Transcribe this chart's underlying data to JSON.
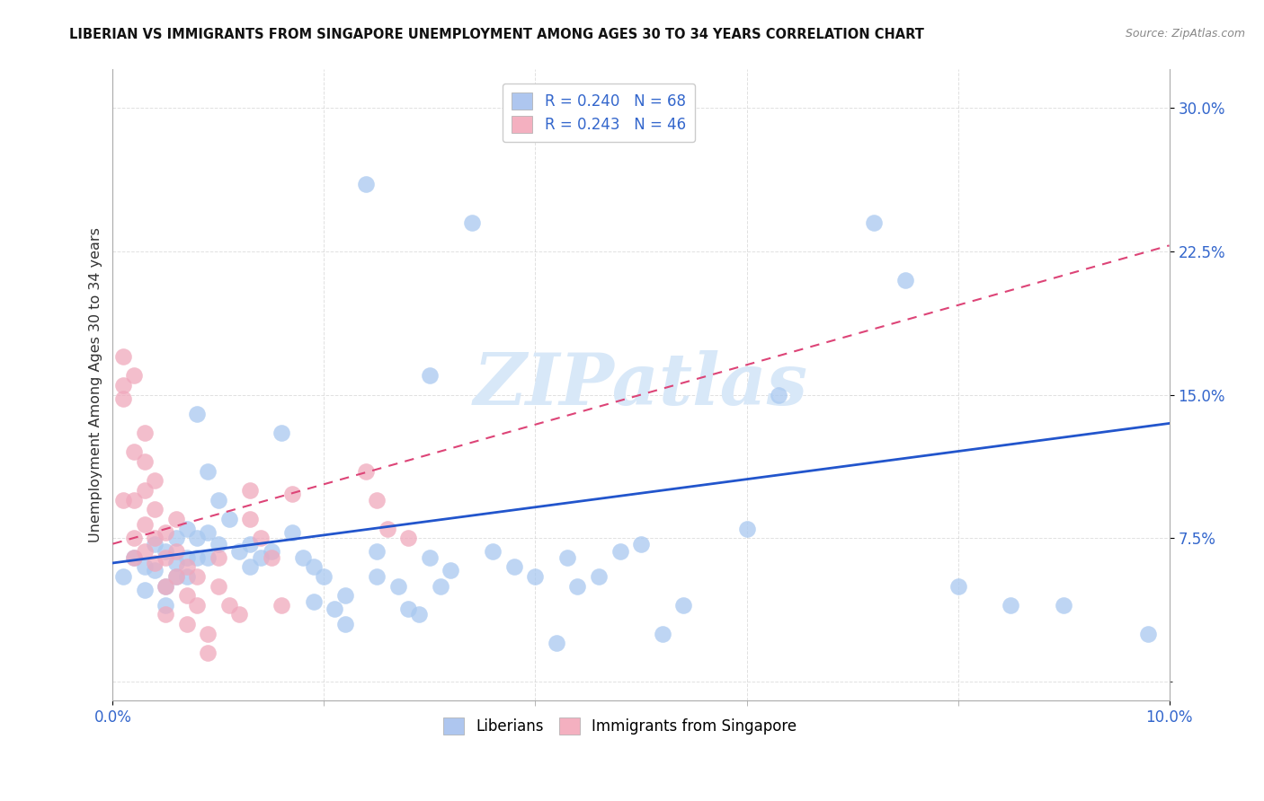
{
  "title": "LIBERIAN VS IMMIGRANTS FROM SINGAPORE UNEMPLOYMENT AMONG AGES 30 TO 34 YEARS CORRELATION CHART",
  "source": "Source: ZipAtlas.com",
  "ylabel_text": "Unemployment Among Ages 30 to 34 years",
  "xlim": [
    0.0,
    0.1
  ],
  "ylim": [
    -0.01,
    0.32
  ],
  "xticks": [
    0.0,
    0.1
  ],
  "yticks": [
    0.075,
    0.15,
    0.225,
    0.3
  ],
  "xtick_labels": [
    "0.0%",
    "10.0%"
  ],
  "ytick_labels": [
    "7.5%",
    "15.0%",
    "22.5%",
    "30.0%"
  ],
  "legend_entries": [
    {
      "label": "R = 0.240   N = 68",
      "facecolor": "#aec6ef"
    },
    {
      "label": "R = 0.243   N = 46",
      "facecolor": "#f4b0c0"
    }
  ],
  "legend_bottom": [
    "Liberians",
    "Immigrants from Singapore"
  ],
  "blue_scatter": [
    [
      0.001,
      0.055
    ],
    [
      0.002,
      0.065
    ],
    [
      0.003,
      0.06
    ],
    [
      0.003,
      0.048
    ],
    [
      0.004,
      0.072
    ],
    [
      0.004,
      0.058
    ],
    [
      0.005,
      0.068
    ],
    [
      0.005,
      0.05
    ],
    [
      0.005,
      0.04
    ],
    [
      0.006,
      0.075
    ],
    [
      0.006,
      0.062
    ],
    [
      0.006,
      0.055
    ],
    [
      0.007,
      0.08
    ],
    [
      0.007,
      0.065
    ],
    [
      0.007,
      0.055
    ],
    [
      0.008,
      0.14
    ],
    [
      0.008,
      0.075
    ],
    [
      0.008,
      0.065
    ],
    [
      0.009,
      0.11
    ],
    [
      0.009,
      0.078
    ],
    [
      0.009,
      0.065
    ],
    [
      0.01,
      0.095
    ],
    [
      0.01,
      0.072
    ],
    [
      0.011,
      0.085
    ],
    [
      0.012,
      0.068
    ],
    [
      0.013,
      0.072
    ],
    [
      0.013,
      0.06
    ],
    [
      0.014,
      0.065
    ],
    [
      0.015,
      0.068
    ],
    [
      0.016,
      0.13
    ],
    [
      0.017,
      0.078
    ],
    [
      0.018,
      0.065
    ],
    [
      0.019,
      0.06
    ],
    [
      0.019,
      0.042
    ],
    [
      0.02,
      0.055
    ],
    [
      0.021,
      0.038
    ],
    [
      0.022,
      0.03
    ],
    [
      0.022,
      0.045
    ],
    [
      0.024,
      0.26
    ],
    [
      0.025,
      0.068
    ],
    [
      0.025,
      0.055
    ],
    [
      0.027,
      0.05
    ],
    [
      0.028,
      0.038
    ],
    [
      0.029,
      0.035
    ],
    [
      0.03,
      0.16
    ],
    [
      0.03,
      0.065
    ],
    [
      0.031,
      0.05
    ],
    [
      0.032,
      0.058
    ],
    [
      0.034,
      0.24
    ],
    [
      0.036,
      0.068
    ],
    [
      0.038,
      0.06
    ],
    [
      0.04,
      0.055
    ],
    [
      0.042,
      0.02
    ],
    [
      0.043,
      0.065
    ],
    [
      0.044,
      0.05
    ],
    [
      0.046,
      0.055
    ],
    [
      0.048,
      0.068
    ],
    [
      0.05,
      0.072
    ],
    [
      0.052,
      0.025
    ],
    [
      0.054,
      0.04
    ],
    [
      0.06,
      0.08
    ],
    [
      0.063,
      0.15
    ],
    [
      0.072,
      0.24
    ],
    [
      0.075,
      0.21
    ],
    [
      0.08,
      0.05
    ],
    [
      0.085,
      0.04
    ],
    [
      0.09,
      0.04
    ],
    [
      0.098,
      0.025
    ]
  ],
  "pink_scatter": [
    [
      0.001,
      0.17
    ],
    [
      0.001,
      0.155
    ],
    [
      0.001,
      0.148
    ],
    [
      0.001,
      0.095
    ],
    [
      0.002,
      0.16
    ],
    [
      0.002,
      0.12
    ],
    [
      0.002,
      0.095
    ],
    [
      0.002,
      0.075
    ],
    [
      0.002,
      0.065
    ],
    [
      0.003,
      0.13
    ],
    [
      0.003,
      0.115
    ],
    [
      0.003,
      0.1
    ],
    [
      0.003,
      0.082
    ],
    [
      0.003,
      0.068
    ],
    [
      0.004,
      0.105
    ],
    [
      0.004,
      0.09
    ],
    [
      0.004,
      0.075
    ],
    [
      0.004,
      0.062
    ],
    [
      0.005,
      0.078
    ],
    [
      0.005,
      0.065
    ],
    [
      0.005,
      0.05
    ],
    [
      0.005,
      0.035
    ],
    [
      0.006,
      0.085
    ],
    [
      0.006,
      0.068
    ],
    [
      0.006,
      0.055
    ],
    [
      0.007,
      0.06
    ],
    [
      0.007,
      0.045
    ],
    [
      0.007,
      0.03
    ],
    [
      0.008,
      0.055
    ],
    [
      0.008,
      0.04
    ],
    [
      0.009,
      0.025
    ],
    [
      0.009,
      0.015
    ],
    [
      0.01,
      0.065
    ],
    [
      0.01,
      0.05
    ],
    [
      0.011,
      0.04
    ],
    [
      0.012,
      0.035
    ],
    [
      0.013,
      0.1
    ],
    [
      0.013,
      0.085
    ],
    [
      0.014,
      0.075
    ],
    [
      0.015,
      0.065
    ],
    [
      0.016,
      0.04
    ],
    [
      0.017,
      0.098
    ],
    [
      0.024,
      0.11
    ],
    [
      0.025,
      0.095
    ],
    [
      0.026,
      0.08
    ],
    [
      0.028,
      0.075
    ]
  ],
  "blue_line_x": [
    0.0,
    0.1
  ],
  "blue_line_y": [
    0.062,
    0.135
  ],
  "pink_line_x": [
    0.0,
    0.1
  ],
  "pink_line_y": [
    0.072,
    0.228
  ],
  "bg_color": "#ffffff",
  "scatter_blue_color": "#a8c8f0",
  "scatter_pink_color": "#f0a8bc",
  "line_blue_color": "#2255cc",
  "line_pink_color": "#dd4477",
  "watermark_text": "ZIPatlas",
  "watermark_color": "#d8e8f8",
  "grid_color": "#cccccc",
  "ytick_color": "#3366cc",
  "xtick_color": "#3366cc",
  "title_color": "#111111",
  "source_color": "#888888"
}
